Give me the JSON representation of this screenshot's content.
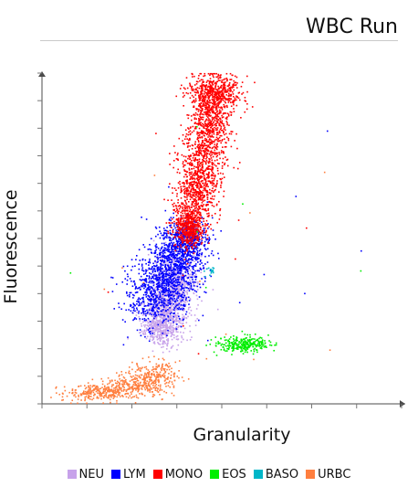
{
  "title": "WBC Run",
  "chart_data": {
    "type": "scatter",
    "title": "WBC Run",
    "xlabel": "Granularity",
    "ylabel": "Fluorescence",
    "xlim": [
      0,
      255
    ],
    "ylim": [
      0,
      255
    ],
    "grid": false,
    "legend_position": "bottom",
    "series": [
      {
        "name": "NEU",
        "color": "#c7a2ea",
        "centers": [
          [
            84,
            58
          ],
          [
            88,
            70
          ],
          [
            92,
            83
          ],
          [
            95,
            98
          ]
        ],
        "spread": [
          [
            7,
            7
          ],
          [
            8,
            9
          ],
          [
            8,
            10
          ],
          [
            8,
            9
          ]
        ],
        "count": 1300
      },
      {
        "name": "LYM",
        "color": "#0000ff",
        "centers": [
          [
            80,
            82
          ],
          [
            88,
            97
          ],
          [
            96,
            112
          ],
          [
            103,
            126
          ]
        ],
        "spread": [
          [
            11,
            12
          ],
          [
            11,
            12
          ],
          [
            10,
            11
          ],
          [
            8,
            8
          ]
        ],
        "count": 1700
      },
      {
        "name": "MONO",
        "color": "#ff0000",
        "centers": [
          [
            104,
            136
          ],
          [
            109,
            161
          ],
          [
            114,
            189
          ],
          [
            120,
            219
          ],
          [
            123,
            240
          ]
        ],
        "spread": [
          [
            5,
            8
          ],
          [
            7,
            14
          ],
          [
            8,
            18
          ],
          [
            8,
            14
          ],
          [
            9,
            7
          ]
        ],
        "count": 2400
      },
      {
        "name": "EOS",
        "color": "#00ee00",
        "centers": [
          [
            137,
            45
          ],
          [
            142,
            47
          ],
          [
            150,
            46
          ]
        ],
        "spread": [
          [
            9,
            3
          ],
          [
            8,
            3
          ],
          [
            7,
            3
          ]
        ],
        "count": 280
      },
      {
        "name": "BASO",
        "color": "#00b6c8",
        "centers": [
          [
            118,
            103
          ]
        ],
        "spread": [
          [
            2,
            2
          ]
        ],
        "count": 15
      },
      {
        "name": "URBC",
        "color": "#ff7f3f",
        "centers": [
          [
            38,
            8
          ],
          [
            52,
            12
          ],
          [
            70,
            17
          ],
          [
            82,
            22
          ]
        ],
        "spread": [
          [
            12,
            3
          ],
          [
            11,
            4
          ],
          [
            8,
            6
          ],
          [
            8,
            6
          ]
        ],
        "count": 700
      }
    ]
  },
  "legend": [
    {
      "label": "NEU",
      "color": "#c7a2ea"
    },
    {
      "label": "LYM",
      "color": "#0000ff"
    },
    {
      "label": "MONO",
      "color": "#ff0000"
    },
    {
      "label": "EOS",
      "color": "#00ee00"
    },
    {
      "label": "BASO",
      "color": "#00b6c8"
    },
    {
      "label": "URBC",
      "color": "#ff7f3f"
    }
  ]
}
